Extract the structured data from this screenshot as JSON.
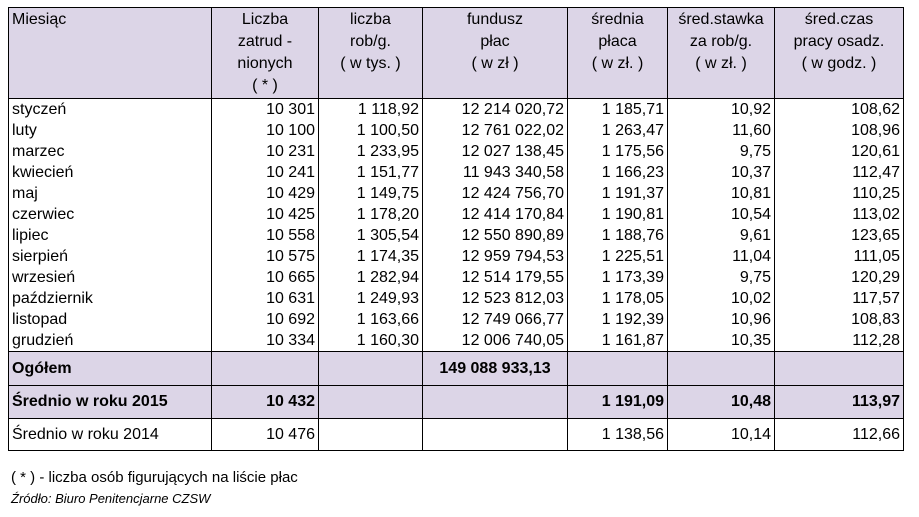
{
  "header": {
    "miesiac": "Miesiąc",
    "zatrud_line1": "Liczba",
    "zatrud_line2": "zatrud -",
    "zatrud_line3": "nionych",
    "zatrud_line4": "( * )",
    "rob_line1": "liczba",
    "rob_line2": "rob/g.",
    "rob_line3": "( w tys. )",
    "fund_line1": "fundusz",
    "fund_line2": "płac",
    "fund_line3": "( w zł )",
    "sred_line1": "średnia",
    "sred_line2": "płaca",
    "sred_line3": "( w zł. )",
    "stawka_line1": "śred.stawka",
    "stawka_line2": "za rob/g.",
    "stawka_line3": "( w zł. )",
    "czas_line1": "śred.czas",
    "czas_line2": "pracy osadz.",
    "czas_line3": "( w godz. )"
  },
  "rows": [
    {
      "month": "styczeń",
      "zatrud": "10 301",
      "rob": "1 118,92",
      "fundusz": "12 214 020,72",
      "placa": "1 185,71",
      "stawka": "10,92",
      "czas": "108,62"
    },
    {
      "month": "luty",
      "zatrud": "10 100",
      "rob": "1 100,50",
      "fundusz": "12 761 022,02",
      "placa": "1 263,47",
      "stawka": "11,60",
      "czas": "108,96"
    },
    {
      "month": "marzec",
      "zatrud": "10 231",
      "rob": "1 233,95",
      "fundusz": "12 027 138,45",
      "placa": "1 175,56",
      "stawka": "9,75",
      "czas": "120,61"
    },
    {
      "month": "kwiecień",
      "zatrud": "10 241",
      "rob": "1 151,77",
      "fundusz": "11 943 340,58",
      "placa": "1 166,23",
      "stawka": "10,37",
      "czas": "112,47"
    },
    {
      "month": "maj",
      "zatrud": "10 429",
      "rob": "1 149,75",
      "fundusz": "12 424 756,70",
      "placa": "1 191,37",
      "stawka": "10,81",
      "czas": "110,25"
    },
    {
      "month": "czerwiec",
      "zatrud": "10 425",
      "rob": "1 178,20",
      "fundusz": "12 414 170,84",
      "placa": "1 190,81",
      "stawka": "10,54",
      "czas": "113,02"
    },
    {
      "month": "lipiec",
      "zatrud": "10 558",
      "rob": "1 305,54",
      "fundusz": "12 550 890,89",
      "placa": "1 188,76",
      "stawka": "9,61",
      "czas": "123,65"
    },
    {
      "month": "sierpień",
      "zatrud": "10 575",
      "rob": "1 174,35",
      "fundusz": "12 959 794,53",
      "placa": "1 225,51",
      "stawka": "11,04",
      "czas": "111,05"
    },
    {
      "month": "wrzesień",
      "zatrud": "10 665",
      "rob": "1 282,94",
      "fundusz": "12 514 179,55",
      "placa": "1 173,39",
      "stawka": "9,75",
      "czas": "120,29"
    },
    {
      "month": "październik",
      "zatrud": "10 631",
      "rob": "1 249,93",
      "fundusz": "12 523 812,03",
      "placa": "1 178,05",
      "stawka": "10,02",
      "czas": "117,57"
    },
    {
      "month": "listopad",
      "zatrud": "10 692",
      "rob": "1 163,66",
      "fundusz": "12 749 066,77",
      "placa": "1 192,39",
      "stawka": "10,96",
      "czas": "108,83"
    },
    {
      "month": "grudzień",
      "zatrud": "10 334",
      "rob": "1 160,30",
      "fundusz": "12 006 740,05",
      "placa": "1 161,87",
      "stawka": "10,35",
      "czas": "112,28"
    }
  ],
  "total": {
    "label": "Ogółem",
    "fundusz": "149 088 933,13"
  },
  "avg2015": {
    "label": "Średnio w roku 2015",
    "zatrud": "10 432",
    "placa": "1 191,09",
    "stawka": "10,48",
    "czas": "113,97"
  },
  "avg2014": {
    "label": "Średnio w roku 2014",
    "zatrud": "10 476",
    "placa": "1 138,56",
    "stawka": "10,14",
    "czas": "112,66"
  },
  "footnote": "( * ) - liczba osób figurujących na liście płac",
  "source": "Źródło: Biuro Penitencjarne CZSW",
  "colors": {
    "header_bg": "#dcd5e7"
  }
}
